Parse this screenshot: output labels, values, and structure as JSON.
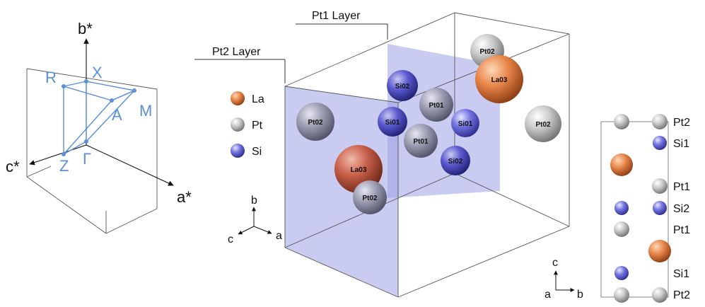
{
  "brillouin_zone": {
    "axes": {
      "b": "b*",
      "c": "c*",
      "a": "a*"
    },
    "points": {
      "R": "R",
      "X": "X",
      "A": "A",
      "M": "M",
      "Z": "Z",
      "G": "Γ"
    }
  },
  "layers": {
    "pt1": "Pt1 Layer",
    "pt2": "Pt2 Layer"
  },
  "legend": [
    {
      "label": "La",
      "color": "#e07a3c"
    },
    {
      "label": "Pt",
      "color": "#bdbdbd"
    },
    {
      "label": "Si",
      "color": "#6a6ad8"
    }
  ],
  "crystal_axes": {
    "b": "b",
    "c": "c",
    "a": "a"
  },
  "atoms": {
    "pt02_top": "Pt02",
    "la03_top": "La03",
    "si02_top": "Si02",
    "pt01_top": "Pt01",
    "pt02_left": "Pt02",
    "si01_left": "Si01",
    "si01_right": "Si01",
    "pt01_mid": "Pt01",
    "pt02_right": "Pt02",
    "la03_bottom": "La03",
    "si02_bottom": "Si02",
    "pt02_bottom": "Pt02"
  },
  "side_view": {
    "labels": [
      "Pt2",
      "Si1",
      "Pt1",
      "Si2",
      "Pt1",
      "Si1",
      "Pt2"
    ],
    "axes": {
      "c": "c",
      "a": "a",
      "b": "b"
    }
  },
  "colors": {
    "la": "#e07a3c",
    "pt": "#bdbdbd",
    "si": "#6a6ad8",
    "bz": "#5b8fd8",
    "plane": "#9da0e6"
  }
}
